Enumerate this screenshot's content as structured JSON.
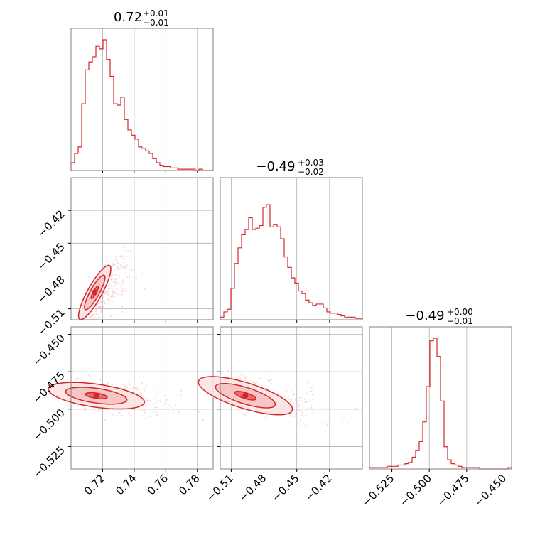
{
  "figure": {
    "colors": {
      "main": "#d62728",
      "fill": "#f4c6c6",
      "grid": "#b0b0b0",
      "spine": "#808080"
    }
  },
  "chart_data": {
    "type": "corner",
    "parameters": [
      {
        "title_main": "0.72",
        "title_upper": "+0.01",
        "title_lower": "−0.01",
        "range": [
          0.7,
          0.79
        ],
        "ticks": [
          {
            "v": 0.72,
            "label": "0.72"
          },
          {
            "v": 0.74,
            "label": "0.74"
          },
          {
            "v": 0.76,
            "label": "0.76"
          },
          {
            "v": 0.78,
            "label": "0.78"
          }
        ]
      },
      {
        "title_main": "−0.49",
        "title_upper": "+0.03",
        "title_lower": "−0.02",
        "range": [
          -0.52,
          -0.39
        ],
        "ticks": [
          {
            "v": -0.51,
            "label": "−0.51"
          },
          {
            "v": -0.48,
            "label": "−0.48"
          },
          {
            "v": -0.45,
            "label": "−0.45"
          },
          {
            "v": -0.42,
            "label": "−0.42"
          }
        ]
      },
      {
        "title_main": "−0.49",
        "title_upper": "+0.00",
        "title_lower": "−0.01",
        "range": [
          -0.54,
          -0.445
        ],
        "ticks": [
          {
            "v": -0.525,
            "label": "−0.525"
          },
          {
            "v": -0.5,
            "label": "−0.500"
          },
          {
            "v": -0.475,
            "label": "−0.475"
          },
          {
            "v": -0.45,
            "label": "−0.450"
          }
        ]
      }
    ],
    "histograms": [
      [
        0.06,
        0.13,
        0.18,
        0.51,
        0.77,
        0.83,
        0.87,
        0.95,
        0.93,
        1.0,
        0.85,
        0.72,
        0.51,
        0.5,
        0.56,
        0.39,
        0.31,
        0.27,
        0.24,
        0.18,
        0.17,
        0.15,
        0.13,
        0.09,
        0.06,
        0.04,
        0.03,
        0.03,
        0.02,
        0.02,
        0.01,
        0.01,
        0.01,
        0.01,
        0.01,
        0.0,
        0.01,
        0.0,
        0.0,
        0.0
      ],
      [
        0.02,
        0.06,
        0.08,
        0.24,
        0.43,
        0.55,
        0.65,
        0.69,
        0.78,
        0.69,
        0.7,
        0.72,
        0.86,
        0.88,
        0.71,
        0.73,
        0.71,
        0.62,
        0.48,
        0.4,
        0.32,
        0.28,
        0.22,
        0.2,
        0.15,
        0.13,
        0.11,
        0.12,
        0.12,
        0.09,
        0.06,
        0.05,
        0.05,
        0.04,
        0.03,
        0.02,
        0.02,
        0.02,
        0.01,
        0.01
      ],
      [
        0.01,
        0.01,
        0.01,
        0.01,
        0.01,
        0.02,
        0.02,
        0.02,
        0.03,
        0.03,
        0.04,
        0.05,
        0.09,
        0.14,
        0.21,
        0.36,
        0.63,
        0.98,
        1.0,
        0.86,
        0.52,
        0.17,
        0.07,
        0.04,
        0.03,
        0.02,
        0.01,
        0.01,
        0.01,
        0.01,
        0.01,
        0.0,
        0.0,
        0.0,
        0.0,
        0.0,
        0.0,
        0.0,
        0.0,
        0.01
      ]
    ],
    "correlations": [
      {
        "x": 0,
        "y": 1,
        "center": [
          0.715,
          -0.495
        ],
        "slope": 2.7,
        "sd_major": 0.012,
        "sd_minor": 0.0022
      },
      {
        "x": 0,
        "y": 2,
        "center": [
          0.716,
          -0.491
        ],
        "slope": -0.15,
        "sd_major": 0.014,
        "sd_minor": 0.0035
      },
      {
        "x": 1,
        "y": 2,
        "center": [
          -0.497,
          -0.491
        ],
        "slope": -0.22,
        "sd_major": 0.02,
        "sd_minor": 0.004
      }
    ],
    "contour_levels": [
      0.39,
      0.86,
      1.0
    ],
    "grid": true
  }
}
